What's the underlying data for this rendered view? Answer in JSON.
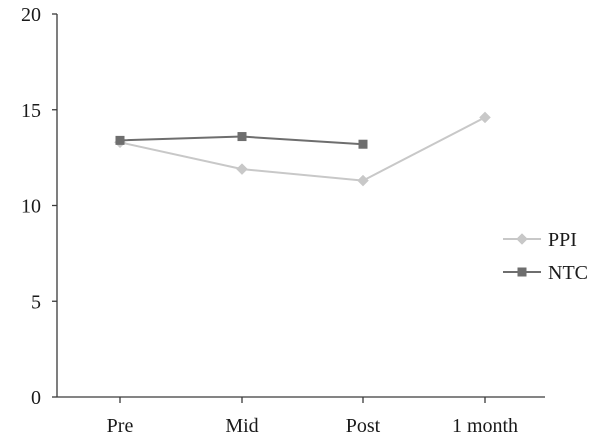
{
  "chart_data": {
    "type": "line",
    "categories": [
      "Pre",
      "Mid",
      "Post",
      "1 month"
    ],
    "ylim": [
      0,
      20
    ],
    "yticks": [
      0,
      5,
      10,
      15,
      20
    ],
    "grid": false,
    "legend_position": "right",
    "series": [
      {
        "name": "PPI",
        "values": [
          13.3,
          11.9,
          11.3,
          14.6
        ],
        "color": "#c8c8c8",
        "marker": "diamond"
      },
      {
        "name": "NTC",
        "values": [
          13.4,
          13.6,
          13.2,
          null
        ],
        "color": "#6e6e6e",
        "marker": "square"
      }
    ]
  }
}
